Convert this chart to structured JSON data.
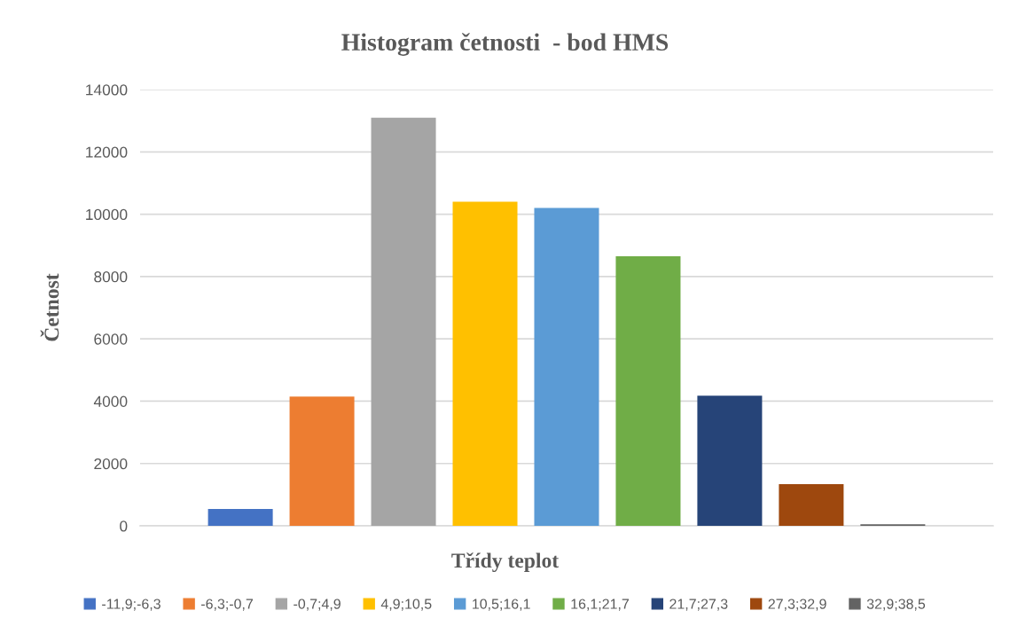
{
  "chart_data": {
    "type": "bar",
    "title": "Histogram četnosti  - bod HMS",
    "xlabel": "Třídy teplot",
    "ylabel": "Četnost",
    "categories": [
      null
    ],
    "series": [
      {
        "name": "-11,9;-6,3",
        "color": "#4472c4",
        "values": [
          540
        ]
      },
      {
        "name": "-6,3;-0,7",
        "color": "#ed7d31",
        "values": [
          4150
        ]
      },
      {
        "name": "-0,7;4,9",
        "color": "#a5a5a5",
        "values": [
          13100
        ]
      },
      {
        "name": "4,9;10,5",
        "color": "#ffc000",
        "values": [
          10400
        ]
      },
      {
        "name": "10,5;16,1",
        "color": "#5b9bd5",
        "values": [
          10200
        ]
      },
      {
        "name": "16,1;21,7",
        "color": "#70ad47",
        "values": [
          8650
        ]
      },
      {
        "name": "21,7;27,3",
        "color": "#264478",
        "values": [
          4180
        ]
      },
      {
        "name": "27,3;32,9",
        "color": "#9e480e",
        "values": [
          1340
        ]
      },
      {
        "name": "32,9;38,5",
        "color": "#636363",
        "values": [
          50
        ]
      }
    ],
    "ylim": [
      0,
      14000
    ],
    "yticks": [
      0,
      2000,
      4000,
      6000,
      8000,
      10000,
      12000,
      14000
    ],
    "grid": "y",
    "legend": "bottom"
  }
}
